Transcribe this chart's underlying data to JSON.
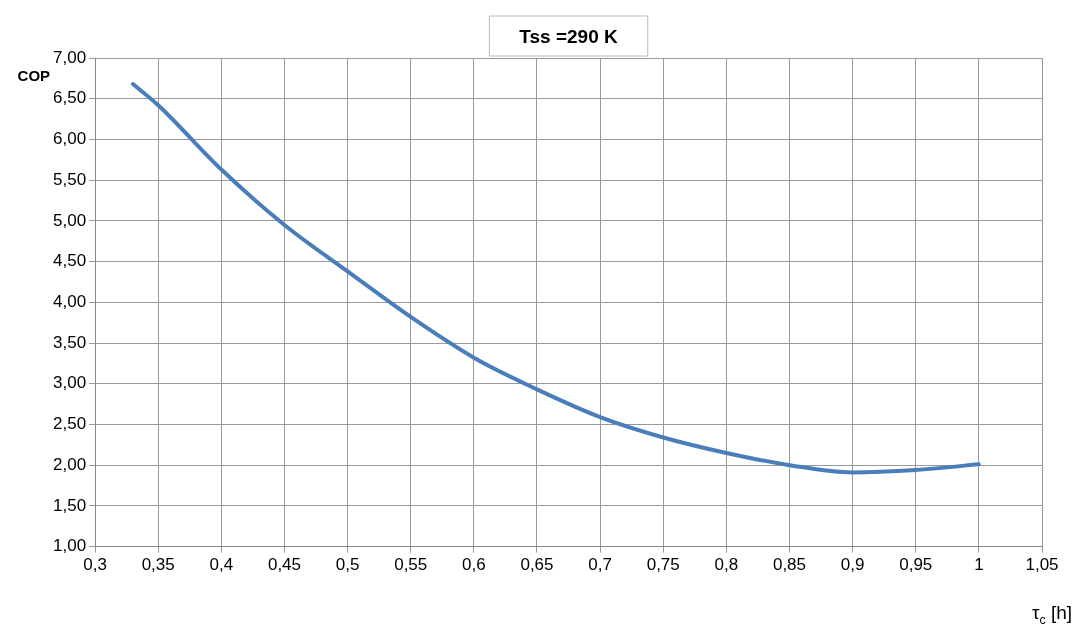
{
  "chart_data": {
    "type": "line",
    "title": "Tss =290 K",
    "ylabel": "COP",
    "xlabel": "τ$_{c}$ [h]",
    "series": [
      {
        "color": "#4a7ebb",
        "x": [
          0.33,
          0.35,
          0.4,
          0.45,
          0.5,
          0.55,
          0.6,
          0.65,
          0.7,
          0.75,
          0.8,
          0.85,
          0.9,
          0.95,
          1.0
        ],
        "values": [
          6.68,
          6.42,
          5.63,
          4.95,
          4.38,
          3.82,
          3.32,
          2.93,
          2.59,
          2.34,
          2.15,
          2.0,
          1.91,
          1.94,
          2.01
        ]
      }
    ],
    "xlim": [
      0.3,
      1.05
    ],
    "xticks": [
      {
        "value": 0.3,
        "label": "0,3"
      },
      {
        "value": 0.35,
        "label": "0,35"
      },
      {
        "value": 0.4,
        "label": "0,4"
      },
      {
        "value": 0.45,
        "label": "0,45"
      },
      {
        "value": 0.5,
        "label": "0,5"
      },
      {
        "value": 0.55,
        "label": "0,55"
      },
      {
        "value": 0.6,
        "label": "0,6"
      },
      {
        "value": 0.65,
        "label": "0,65"
      },
      {
        "value": 0.7,
        "label": "0,7"
      },
      {
        "value": 0.75,
        "label": "0,75"
      },
      {
        "value": 0.8,
        "label": "0,8"
      },
      {
        "value": 0.85,
        "label": "0,85"
      },
      {
        "value": 0.9,
        "label": "0,9"
      },
      {
        "value": 0.95,
        "label": "0,95"
      },
      {
        "value": 1,
        "label": "1"
      },
      {
        "value": 1.05,
        "label": "1,05"
      }
    ],
    "ylim": [
      1,
      7
    ],
    "yticks": [
      {
        "value": 1,
        "label": "1,00"
      },
      {
        "value": 1.5,
        "label": "1,50"
      },
      {
        "value": 2,
        "label": "2,00"
      },
      {
        "value": 2.5,
        "label": "2,50"
      },
      {
        "value": 3,
        "label": "3,00"
      },
      {
        "value": 3.5,
        "label": "3,50"
      },
      {
        "value": 4,
        "label": "4,00"
      },
      {
        "value": 4.5,
        "label": "4,50"
      },
      {
        "value": 5,
        "label": "5,00"
      },
      {
        "value": 5.5,
        "label": "5,50"
      },
      {
        "value": 6,
        "label": "6,00"
      },
      {
        "value": 6.5,
        "label": "6,50"
      },
      {
        "value": 7,
        "label": "7,00"
      }
    ],
    "grid": true,
    "legend": false,
    "marker": "none",
    "line_style": "solid"
  }
}
